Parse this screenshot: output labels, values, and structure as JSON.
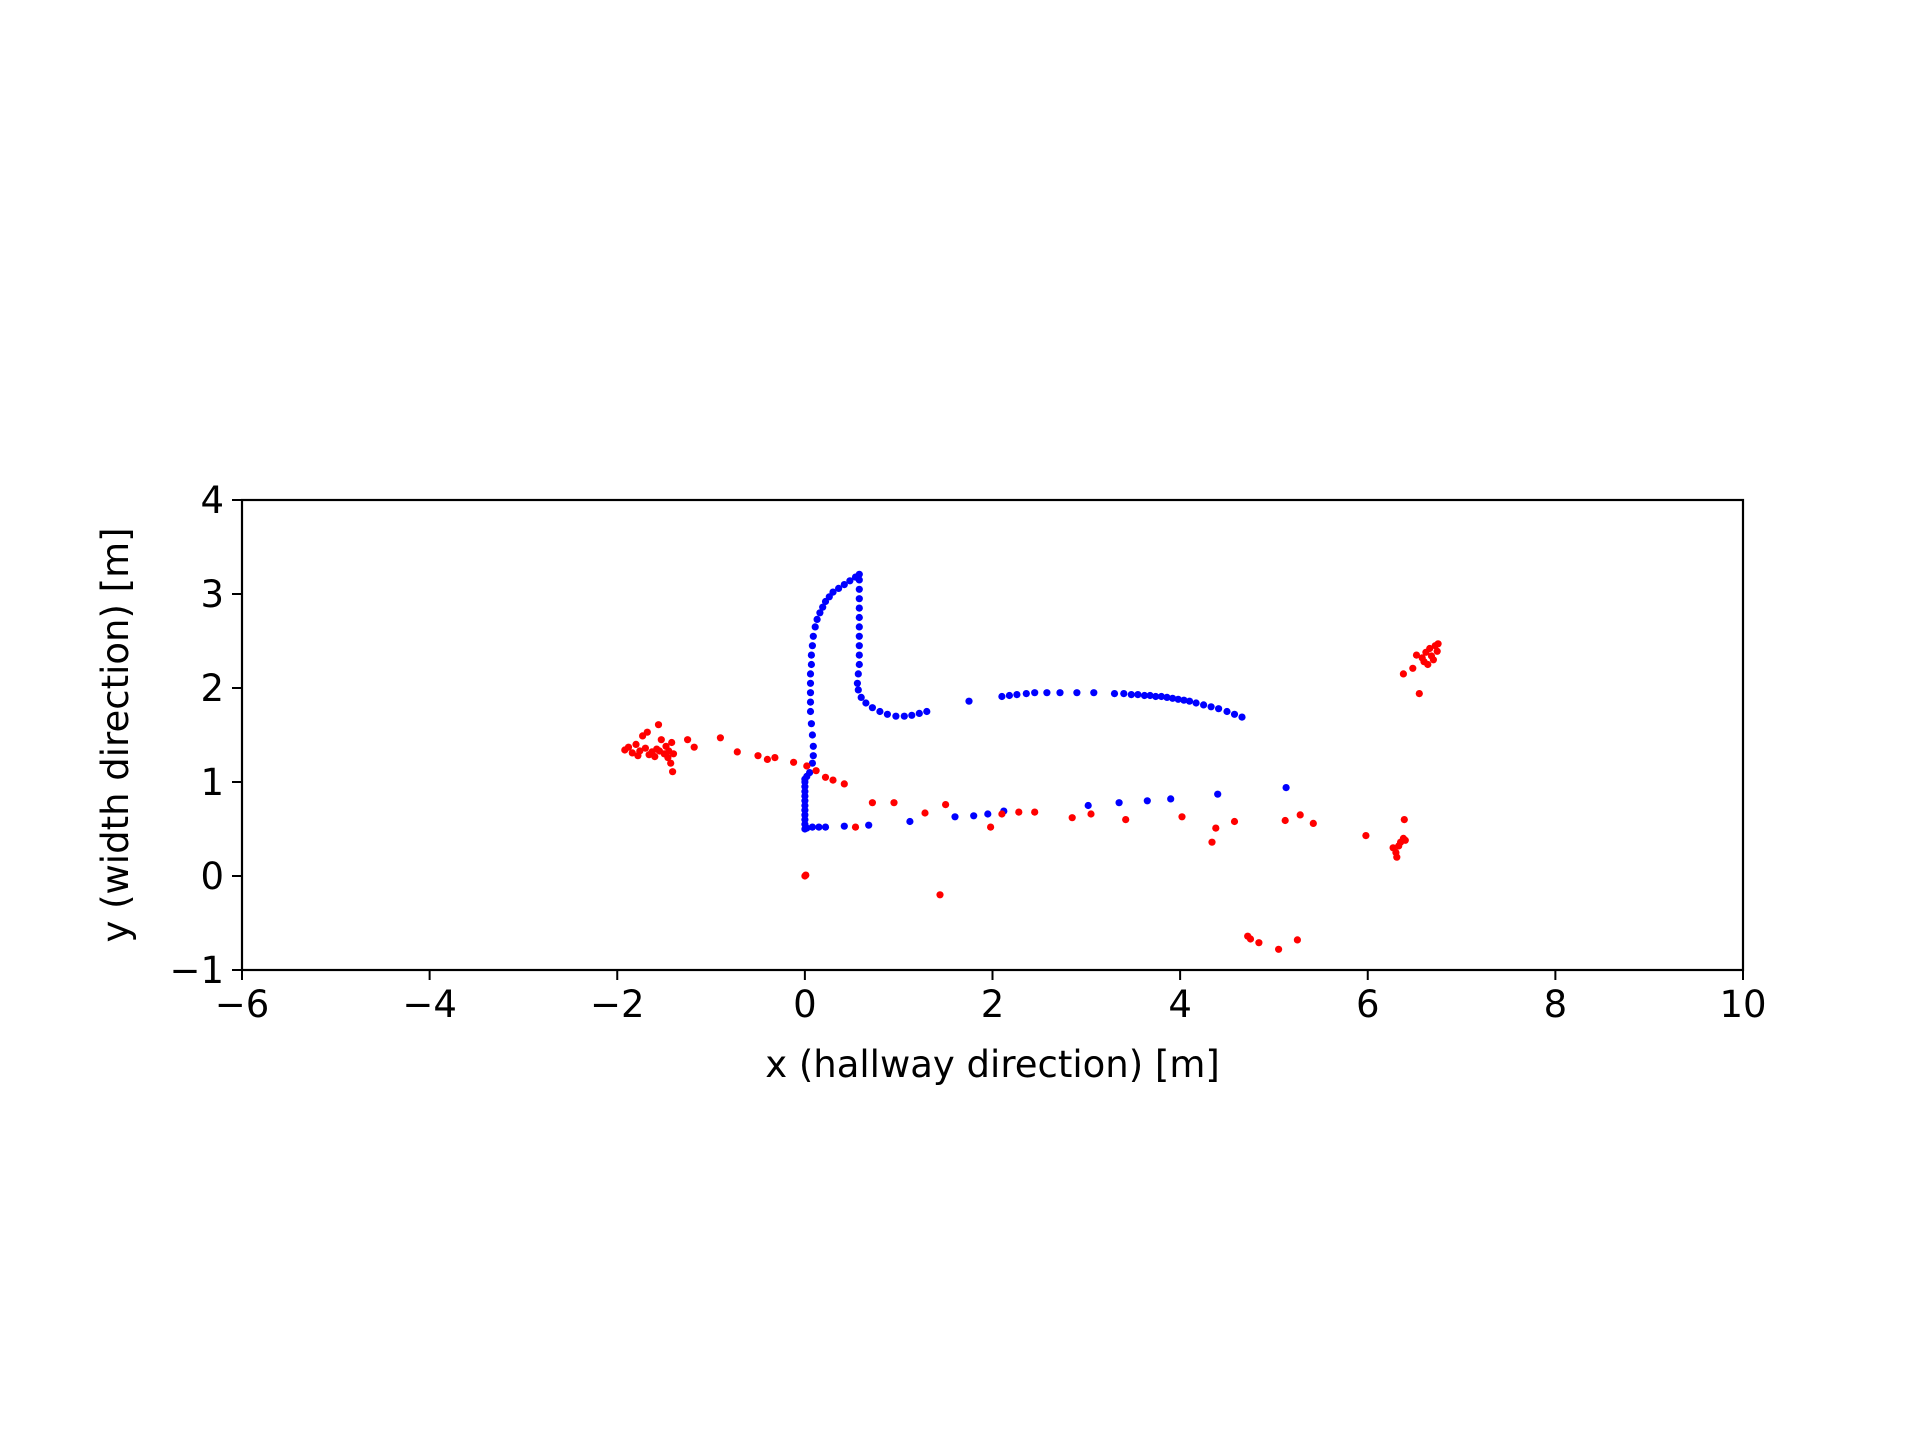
{
  "chart_data": {
    "type": "scatter",
    "title": "",
    "xlabel": "x (hallway direction) [m]",
    "ylabel": "y (width direction) [m]",
    "xlim": [
      -6,
      10
    ],
    "ylim": [
      -1,
      4
    ],
    "xticks": [
      -6,
      -4,
      -2,
      0,
      2,
      4,
      6,
      8,
      10
    ],
    "yticks": [
      -1,
      0,
      1,
      2,
      3,
      4
    ],
    "xtick_labels": [
      "−6",
      "−4",
      "−2",
      "0",
      "2",
      "4",
      "6",
      "8",
      "10"
    ],
    "ytick_labels": [
      "−1",
      "0",
      "1",
      "2",
      "3",
      "4"
    ],
    "grid": false,
    "legend": "none",
    "series": [
      {
        "color": "#0000ff",
        "points": [
          [
            0.0,
            0.5
          ],
          [
            0.0,
            0.55
          ],
          [
            0.0,
            0.6
          ],
          [
            0.0,
            0.65
          ],
          [
            0.0,
            0.7
          ],
          [
            0.0,
            0.75
          ],
          [
            0.0,
            0.8
          ],
          [
            0.0,
            0.85
          ],
          [
            0.0,
            0.9
          ],
          [
            0.0,
            0.95
          ],
          [
            0.0,
            1.0
          ],
          [
            0.0,
            1.03
          ],
          [
            0.02,
            1.06
          ],
          [
            0.05,
            1.1
          ],
          [
            0.08,
            1.2
          ],
          [
            0.09,
            1.28
          ],
          [
            0.09,
            1.38
          ],
          [
            0.08,
            1.5
          ],
          [
            0.07,
            1.62
          ],
          [
            0.06,
            1.75
          ],
          [
            0.06,
            1.85
          ],
          [
            0.06,
            1.95
          ],
          [
            0.06,
            2.05
          ],
          [
            0.06,
            2.15
          ],
          [
            0.07,
            2.25
          ],
          [
            0.07,
            2.35
          ],
          [
            0.08,
            2.45
          ],
          [
            0.09,
            2.55
          ],
          [
            0.11,
            2.65
          ],
          [
            0.13,
            2.73
          ],
          [
            0.16,
            2.8
          ],
          [
            0.19,
            2.86
          ],
          [
            0.22,
            2.92
          ],
          [
            0.26,
            2.97
          ],
          [
            0.3,
            3.02
          ],
          [
            0.36,
            3.06
          ],
          [
            0.42,
            3.1
          ],
          [
            0.48,
            3.14
          ],
          [
            0.54,
            3.18
          ],
          [
            0.58,
            3.21
          ],
          [
            0.58,
            3.15
          ],
          [
            0.58,
            3.05
          ],
          [
            0.58,
            2.95
          ],
          [
            0.58,
            2.85
          ],
          [
            0.58,
            2.75
          ],
          [
            0.58,
            2.65
          ],
          [
            0.58,
            2.55
          ],
          [
            0.58,
            2.45
          ],
          [
            0.58,
            2.35
          ],
          [
            0.58,
            2.25
          ],
          [
            0.57,
            2.15
          ],
          [
            0.56,
            2.05
          ],
          [
            0.57,
            1.98
          ],
          [
            0.6,
            1.9
          ],
          [
            0.65,
            1.84
          ],
          [
            0.72,
            1.79
          ],
          [
            0.8,
            1.75
          ],
          [
            0.88,
            1.72
          ],
          [
            0.97,
            1.7
          ],
          [
            1.06,
            1.7
          ],
          [
            1.14,
            1.71
          ],
          [
            1.22,
            1.73
          ],
          [
            1.3,
            1.75
          ],
          [
            1.75,
            1.86
          ],
          [
            2.1,
            1.91
          ],
          [
            2.18,
            1.92
          ],
          [
            2.26,
            1.93
          ],
          [
            2.36,
            1.94
          ],
          [
            2.45,
            1.95
          ],
          [
            2.58,
            1.95
          ],
          [
            2.72,
            1.95
          ],
          [
            2.9,
            1.95
          ],
          [
            3.08,
            1.95
          ],
          [
            3.3,
            1.94
          ],
          [
            3.4,
            1.94
          ],
          [
            3.48,
            1.93
          ],
          [
            3.55,
            1.93
          ],
          [
            3.62,
            1.92
          ],
          [
            3.68,
            1.92
          ],
          [
            3.74,
            1.91
          ],
          [
            3.8,
            1.91
          ],
          [
            3.86,
            1.9
          ],
          [
            3.92,
            1.89
          ],
          [
            3.98,
            1.88
          ],
          [
            4.04,
            1.87
          ],
          [
            4.1,
            1.86
          ],
          [
            4.17,
            1.84
          ],
          [
            4.25,
            1.82
          ],
          [
            4.33,
            1.8
          ],
          [
            4.41,
            1.78
          ],
          [
            4.5,
            1.75
          ],
          [
            4.58,
            1.72
          ],
          [
            4.66,
            1.69
          ],
          [
            0.02,
            0.51
          ],
          [
            0.08,
            0.52
          ],
          [
            0.15,
            0.52
          ],
          [
            0.22,
            0.52
          ],
          [
            0.42,
            0.53
          ],
          [
            0.68,
            0.54
          ],
          [
            1.12,
            0.58
          ],
          [
            1.6,
            0.63
          ],
          [
            1.8,
            0.64
          ],
          [
            1.95,
            0.66
          ],
          [
            2.12,
            0.69
          ],
          [
            3.02,
            0.75
          ],
          [
            3.35,
            0.78
          ],
          [
            3.65,
            0.8
          ],
          [
            3.9,
            0.82
          ],
          [
            4.4,
            0.87
          ],
          [
            5.13,
            0.94
          ]
        ]
      },
      {
        "color": "#ff0000",
        "points": [
          [
            -1.92,
            1.34
          ],
          [
            -1.88,
            1.37
          ],
          [
            -1.84,
            1.31
          ],
          [
            -1.8,
            1.4
          ],
          [
            -1.78,
            1.28
          ],
          [
            -1.76,
            1.33
          ],
          [
            -1.73,
            1.49
          ],
          [
            -1.7,
            1.36
          ],
          [
            -1.68,
            1.53
          ],
          [
            -1.66,
            1.29
          ],
          [
            -1.63,
            1.32
          ],
          [
            -1.6,
            1.27
          ],
          [
            -1.58,
            1.35
          ],
          [
            -1.56,
            1.61
          ],
          [
            -1.55,
            1.33
          ],
          [
            -1.53,
            1.45
          ],
          [
            -1.5,
            1.3
          ],
          [
            -1.48,
            1.38
          ],
          [
            -1.46,
            1.26
          ],
          [
            -1.45,
            1.33
          ],
          [
            -1.43,
            1.2
          ],
          [
            -1.42,
            1.42
          ],
          [
            -1.41,
            1.11
          ],
          [
            -1.4,
            1.3
          ],
          [
            -1.25,
            1.45
          ],
          [
            -1.18,
            1.37
          ],
          [
            -0.9,
            1.47
          ],
          [
            -0.72,
            1.32
          ],
          [
            -0.5,
            1.28
          ],
          [
            -0.4,
            1.24
          ],
          [
            -0.32,
            1.26
          ],
          [
            -0.12,
            1.21
          ],
          [
            0.02,
            1.17
          ],
          [
            0.12,
            1.12
          ],
          [
            0.22,
            1.05
          ],
          [
            0.3,
            1.02
          ],
          [
            0.42,
            0.98
          ],
          [
            0.54,
            0.52
          ],
          [
            0.72,
            0.78
          ],
          [
            0.95,
            0.78
          ],
          [
            1.28,
            0.67
          ],
          [
            1.5,
            0.76
          ],
          [
            1.98,
            0.52
          ],
          [
            2.1,
            0.66
          ],
          [
            2.28,
            0.68
          ],
          [
            2.45,
            0.68
          ],
          [
            2.85,
            0.62
          ],
          [
            3.05,
            0.66
          ],
          [
            3.42,
            0.6
          ],
          [
            4.02,
            0.63
          ],
          [
            4.34,
            0.36
          ],
          [
            4.38,
            0.51
          ],
          [
            4.58,
            0.58
          ],
          [
            5.12,
            0.59
          ],
          [
            5.28,
            0.65
          ],
          [
            5.42,
            0.56
          ],
          [
            5.98,
            0.43
          ],
          [
            6.27,
            0.3
          ],
          [
            6.3,
            0.25
          ],
          [
            6.31,
            0.2
          ],
          [
            6.33,
            0.32
          ],
          [
            6.35,
            0.36
          ],
          [
            6.38,
            0.4
          ],
          [
            6.4,
            0.38
          ],
          [
            6.39,
            0.6
          ],
          [
            0.0,
            0.0
          ],
          [
            0.01,
            0.01
          ],
          [
            1.44,
            -0.2
          ],
          [
            4.72,
            -0.64
          ],
          [
            4.75,
            -0.67
          ],
          [
            4.84,
            -0.71
          ],
          [
            5.05,
            -0.78
          ],
          [
            5.25,
            -0.68
          ],
          [
            6.38,
            2.15
          ],
          [
            6.48,
            2.21
          ],
          [
            6.52,
            2.35
          ],
          [
            6.55,
            1.94
          ],
          [
            6.58,
            2.32
          ],
          [
            6.6,
            2.28
          ],
          [
            6.62,
            2.38
          ],
          [
            6.64,
            2.25
          ],
          [
            6.66,
            2.42
          ],
          [
            6.68,
            2.34
          ],
          [
            6.7,
            2.3
          ],
          [
            6.72,
            2.45
          ],
          [
            6.74,
            2.39
          ],
          [
            6.75,
            2.47
          ]
        ]
      }
    ]
  }
}
